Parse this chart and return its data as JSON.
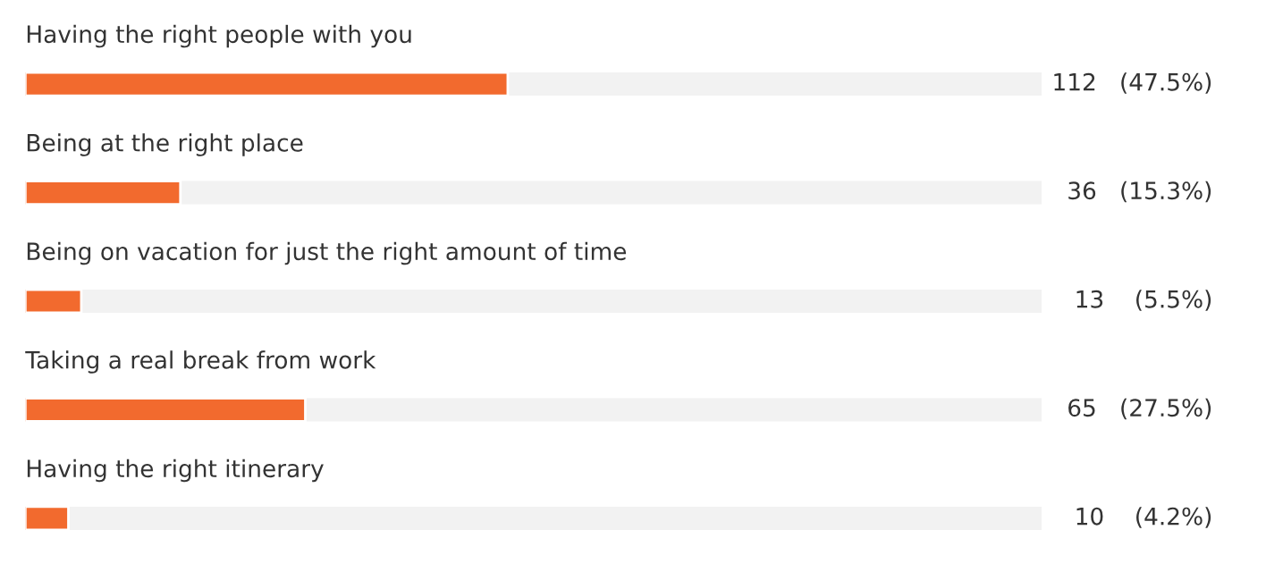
{
  "chart_data": {
    "type": "bar",
    "orientation": "horizontal",
    "categories": [
      "Having the right people with you",
      "Being at the right place",
      "Being on vacation for just the right amount of time",
      "Taking a real break from work",
      "Having the right itinerary"
    ],
    "values": [
      112,
      36,
      13,
      65,
      10
    ],
    "value_labels": [
      "112   (47.5%)",
      "36   (15.3%)",
      "13    (5.5%)",
      "65   (27.5%)",
      "10    (4.2%)"
    ],
    "color": "#f26a2e",
    "xlim": [
      0,
      236
    ]
  }
}
